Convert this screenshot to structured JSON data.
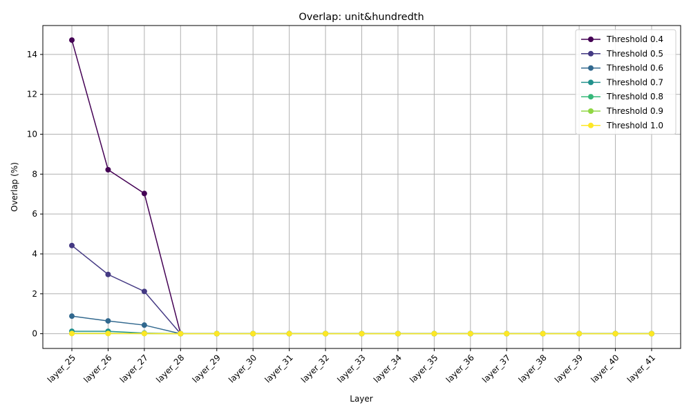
{
  "chart_data": {
    "type": "line",
    "title": "Overlap: unit&hundredth",
    "xlabel": "Layer",
    "ylabel": "Overlap (%)",
    "categories": [
      "layer_25",
      "layer_26",
      "layer_27",
      "layer_28",
      "layer_29",
      "layer_30",
      "layer_31",
      "layer_32",
      "layer_33",
      "layer_34",
      "layer_35",
      "layer_36",
      "layer_37",
      "layer_38",
      "layer_39",
      "layer_40",
      "layer_41"
    ],
    "ylim": [
      -0.74,
      15.45
    ],
    "yticks": [
      0,
      2,
      4,
      6,
      8,
      10,
      12,
      14
    ],
    "grid": true,
    "legend_position": "top-right",
    "series": [
      {
        "name": "Threshold 0.4",
        "color": "#440154",
        "values": [
          14.72,
          8.22,
          7.03,
          0,
          0,
          0,
          0,
          0,
          0,
          0,
          0,
          0,
          0,
          0,
          0,
          0,
          0
        ]
      },
      {
        "name": "Threshold 0.5",
        "color": "#443983",
        "values": [
          4.42,
          2.97,
          2.12,
          0,
          0,
          0,
          0,
          0,
          0,
          0,
          0,
          0,
          0,
          0,
          0,
          0,
          0
        ]
      },
      {
        "name": "Threshold 0.6",
        "color": "#31688e",
        "values": [
          0.88,
          0.64,
          0.43,
          0,
          0,
          0,
          0,
          0,
          0,
          0,
          0,
          0,
          0,
          0,
          0,
          0,
          0
        ]
      },
      {
        "name": "Threshold 0.7",
        "color": "#21918c",
        "values": [
          0.12,
          0.12,
          0.03,
          0,
          0,
          0,
          0,
          0,
          0,
          0,
          0,
          0,
          0,
          0,
          0,
          0,
          0
        ]
      },
      {
        "name": "Threshold 0.8",
        "color": "#35b779",
        "values": [
          0.02,
          0.02,
          0.01,
          0,
          0,
          0,
          0,
          0,
          0,
          0,
          0,
          0,
          0,
          0,
          0,
          0,
          0
        ]
      },
      {
        "name": "Threshold 0.9",
        "color": "#90d743",
        "values": [
          0.01,
          0.01,
          0.01,
          0,
          0,
          0,
          0,
          0,
          0,
          0,
          0,
          0,
          0,
          0,
          0,
          0,
          0
        ]
      },
      {
        "name": "Threshold 1.0",
        "color": "#fde725",
        "values": [
          0.01,
          0.01,
          0.01,
          0,
          0,
          0,
          0,
          0,
          0,
          0,
          0,
          0,
          0,
          0,
          0,
          0,
          0
        ]
      }
    ]
  }
}
